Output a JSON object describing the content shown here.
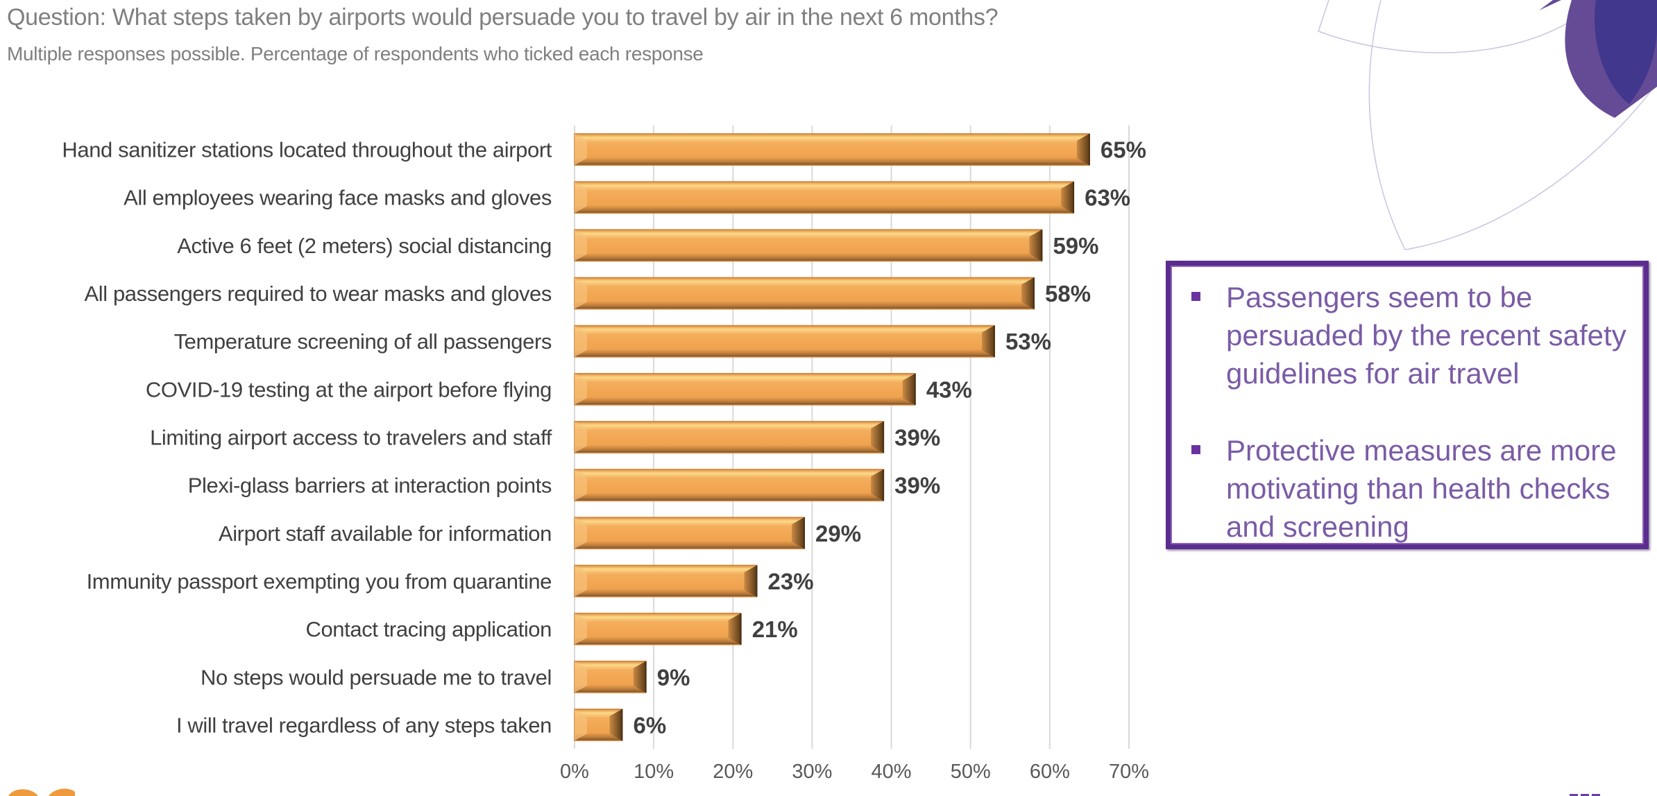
{
  "header": {
    "title": "Question: What steps taken by airports would persuade you to travel by air in the next 6 months?",
    "subtitle": "Multiple responses possible. Percentage of respondents who ticked each response"
  },
  "callout": {
    "bullets": [
      "Passengers seem to be persuaded by the recent safety guidelines for air travel",
      "Protective measures are more motivating than health checks and screening"
    ]
  },
  "colors": {
    "bar_fill": "#f0a24e",
    "bar_highlight": "#fbd98a",
    "bar_shadow": "#7a4e22",
    "gridline": "#d9d9d9",
    "text_gray": "#7f7f7f",
    "label_dark": "#404040",
    "callout_border": "#5b2d8e",
    "callout_text": "#7a5ba6",
    "deco_purple_light": "#654b96",
    "deco_purple_dark": "#41378d",
    "logo_orange": "#ef9a3d"
  },
  "icons": {
    "bullet": "square-bullet-icon",
    "corner_decoration": "petal-logo-icon",
    "footer_logo": "orange-logo-icon"
  },
  "chart_data": {
    "type": "bar",
    "orientation": "horizontal",
    "title": "",
    "xlabel": "",
    "ylabel": "",
    "xlim": [
      0,
      70
    ],
    "x_ticks": [
      0,
      10,
      20,
      30,
      40,
      50,
      60,
      70
    ],
    "x_tick_labels": [
      "0%",
      "10%",
      "20%",
      "30%",
      "40%",
      "50%",
      "60%",
      "70%"
    ],
    "grid": "vertical",
    "legend": "none",
    "categories": [
      "Hand sanitizer stations located throughout the airport",
      "All employees wearing face masks and gloves",
      "Active 6 feet (2 meters) social distancing",
      "All passengers required to wear masks and gloves",
      "Temperature screening of all passengers",
      "COVID-19 testing at the airport before flying",
      "Limiting airport access to travelers and staff",
      "Plexi-glass barriers at interaction points",
      "Airport staff available for information",
      "Immunity passport exempting you from quarantine",
      "Contact tracing application",
      "No steps would persuade me to travel",
      "I will travel regardless of any steps taken"
    ],
    "values": [
      65,
      63,
      59,
      58,
      53,
      43,
      39,
      39,
      29,
      23,
      21,
      9,
      6
    ],
    "data_labels": [
      "65%",
      "63%",
      "59%",
      "58%",
      "53%",
      "43%",
      "39%",
      "39%",
      "29%",
      "23%",
      "21%",
      "9%",
      "6%"
    ],
    "unit": "%"
  }
}
